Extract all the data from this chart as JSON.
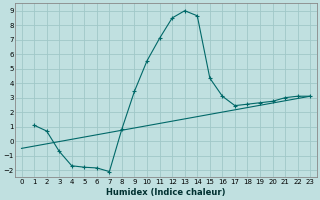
{
  "xlabel": "Humidex (Indice chaleur)",
  "ylabel": "",
  "bg_color": "#c0e0e0",
  "grid_color": "#a0c8c8",
  "line_color": "#006868",
  "xlim": [
    -0.5,
    23.5
  ],
  "ylim": [
    -2.5,
    9.5
  ],
  "xticks": [
    0,
    1,
    2,
    3,
    4,
    5,
    6,
    7,
    8,
    9,
    10,
    11,
    12,
    13,
    14,
    15,
    16,
    17,
    18,
    19,
    20,
    21,
    22,
    23
  ],
  "yticks": [
    -2,
    -1,
    0,
    1,
    2,
    3,
    4,
    5,
    6,
    7,
    8,
    9
  ],
  "curve1_x": [
    1,
    2,
    3,
    4,
    5,
    6,
    7,
    8,
    9,
    10,
    11,
    12,
    13,
    14,
    15,
    16,
    17,
    18,
    19,
    20,
    21,
    22,
    23
  ],
  "curve1_y": [
    1.1,
    0.7,
    -0.7,
    -1.7,
    -1.8,
    -1.85,
    -2.1,
    0.85,
    3.45,
    5.55,
    7.1,
    8.5,
    9.0,
    8.65,
    4.35,
    3.1,
    2.45,
    2.55,
    2.65,
    2.75,
    3.0,
    3.1,
    3.1
  ],
  "curve2_x": [
    0,
    23
  ],
  "curve2_y": [
    -0.5,
    3.1
  ],
  "tick_fontsize": 5.0,
  "xlabel_fontsize": 6.0
}
